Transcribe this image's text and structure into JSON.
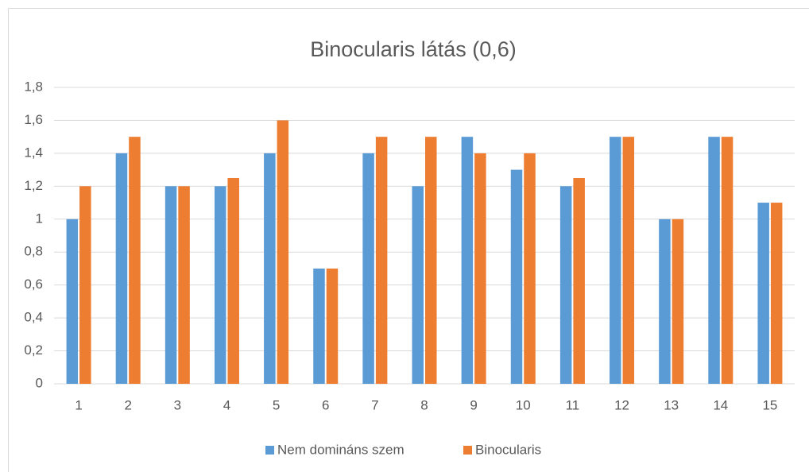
{
  "chart_data": {
    "type": "bar",
    "title": "Binocularis látás (0,6)",
    "categories": [
      "1",
      "2",
      "3",
      "4",
      "5",
      "6",
      "7",
      "8",
      "9",
      "10",
      "11",
      "12",
      "13",
      "14",
      "15"
    ],
    "series": [
      {
        "name": "Nem domináns szem",
        "color": "#5b9bd5",
        "values": [
          1,
          1.4,
          1.2,
          1.2,
          1.4,
          0.7,
          1.4,
          1.2,
          1.5,
          1.3,
          1.2,
          1.5,
          1,
          1.5,
          1.1
        ]
      },
      {
        "name": "Binocularis",
        "color": "#ed7d31",
        "values": [
          1.2,
          1.5,
          1.2,
          1.25,
          1.6,
          0.7,
          1.5,
          1.5,
          1.4,
          1.4,
          1.25,
          1.5,
          1,
          1.5,
          1.1
        ]
      }
    ],
    "ylim": [
      0,
      1.8
    ],
    "yticks": [
      0,
      {
        "value": 0.2,
        "label": "0,2"
      },
      {
        "value": 0.4,
        "label": "0,4"
      },
      {
        "value": 0.6,
        "label": "0,6"
      },
      {
        "value": 0.8,
        "label": "0,8"
      },
      1,
      {
        "value": 1.2,
        "label": "1,2"
      },
      {
        "value": 1.4,
        "label": "1,4"
      },
      {
        "value": 1.6,
        "label": "1,6"
      },
      {
        "value": 1.8,
        "label": "1,8"
      }
    ],
    "grid": true,
    "legend": "bottom"
  }
}
